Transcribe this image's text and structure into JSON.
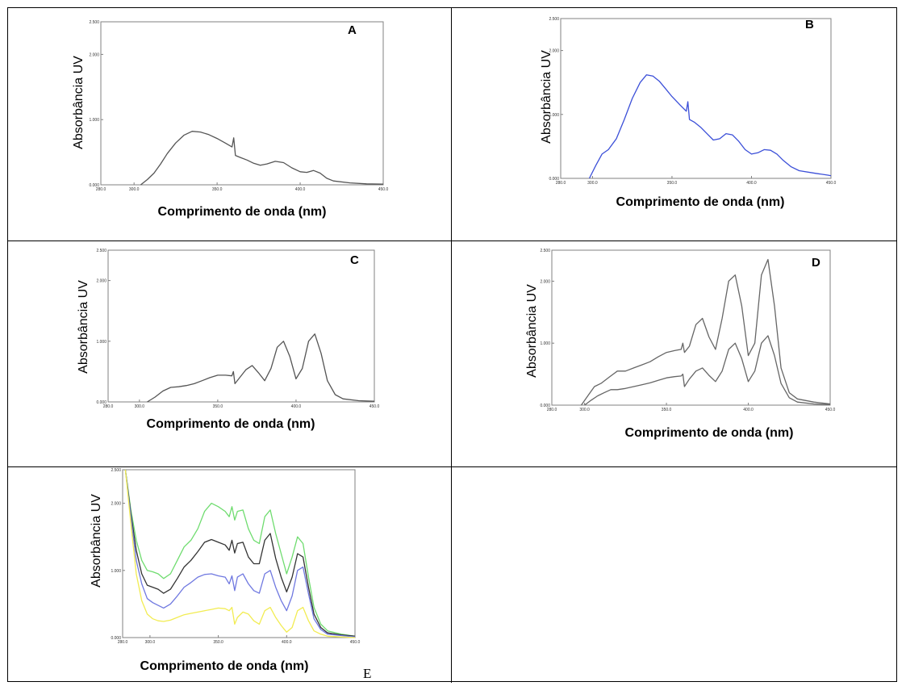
{
  "axis_text": {
    "ylabel": "Absorbância UV",
    "xlabel": "Comprimento de onda (nm)"
  },
  "chart_data": [
    {
      "type": "line",
      "panel": "A",
      "xlabel": "Comprimento de onda (nm)",
      "ylabel": "Absorbância UV",
      "xlim": [
        280,
        450
      ],
      "ylim": [
        0,
        2.5
      ],
      "xticks": [
        "280.0",
        "300.0",
        "350.0",
        "400.0",
        "450.0"
      ],
      "yticks": [
        "0.000",
        "1.000",
        "2.000",
        "2.500"
      ],
      "series": [
        {
          "color": "#555555",
          "x": [
            304,
            308,
            312,
            316,
            320,
            325,
            330,
            335,
            340,
            345,
            350,
            355,
            359,
            360,
            361,
            364,
            368,
            372,
            376,
            380,
            385,
            390,
            395,
            400,
            404,
            408,
            412,
            416,
            420,
            430,
            440,
            450
          ],
          "values": [
            0.0,
            0.08,
            0.18,
            0.32,
            0.48,
            0.64,
            0.76,
            0.82,
            0.81,
            0.77,
            0.71,
            0.64,
            0.58,
            0.72,
            0.45,
            0.42,
            0.38,
            0.33,
            0.3,
            0.32,
            0.36,
            0.34,
            0.26,
            0.2,
            0.19,
            0.22,
            0.18,
            0.1,
            0.06,
            0.03,
            0.015,
            0.01
          ]
        }
      ]
    },
    {
      "type": "line",
      "panel": "B",
      "xlabel": "Comprimento de onda (nm)",
      "ylabel": "Absorbância UV",
      "xlim": [
        280,
        450
      ],
      "ylim": [
        0,
        2.5
      ],
      "xticks": [
        "280.0",
        "300.0",
        "350.0",
        "400.0",
        "450.0"
      ],
      "yticks": [
        "0.000",
        "1.000",
        "2.000",
        "2.500"
      ],
      "series": [
        {
          "color": "#3b4fd8",
          "x": [
            298,
            302,
            306,
            310,
            315,
            320,
            325,
            330,
            334,
            338,
            342,
            346,
            350,
            355,
            359,
            360,
            361,
            364,
            368,
            372,
            376,
            380,
            384,
            388,
            392,
            396,
            400,
            404,
            408,
            412,
            416,
            420,
            425,
            430,
            440,
            448,
            450
          ],
          "values": [
            0.0,
            0.2,
            0.38,
            0.45,
            0.62,
            0.92,
            1.25,
            1.5,
            1.62,
            1.6,
            1.52,
            1.4,
            1.28,
            1.15,
            1.05,
            1.2,
            0.92,
            0.88,
            0.8,
            0.7,
            0.6,
            0.62,
            0.7,
            0.68,
            0.58,
            0.45,
            0.38,
            0.4,
            0.45,
            0.44,
            0.38,
            0.28,
            0.18,
            0.12,
            0.08,
            0.05,
            0.04
          ]
        }
      ]
    },
    {
      "type": "line",
      "panel": "C",
      "xlabel": "Comprimento de onda (nm)",
      "ylabel": "Absorbância UV",
      "xlim": [
        280,
        450
      ],
      "ylim": [
        0,
        2.5
      ],
      "xticks": [
        "280.0",
        "300.0",
        "350.0",
        "400.0",
        "450.0"
      ],
      "yticks": [
        "0.000",
        "1.000",
        "2.000",
        "2.500"
      ],
      "series": [
        {
          "color": "#555555",
          "x": [
            305,
            310,
            315,
            320,
            325,
            330,
            335,
            340,
            345,
            350,
            355,
            359,
            360,
            361,
            364,
            368,
            372,
            376,
            380,
            384,
            388,
            392,
            396,
            400,
            404,
            408,
            412,
            416,
            420,
            425,
            430,
            440,
            450
          ],
          "values": [
            0.0,
            0.08,
            0.18,
            0.24,
            0.25,
            0.27,
            0.3,
            0.35,
            0.4,
            0.44,
            0.44,
            0.43,
            0.5,
            0.3,
            0.4,
            0.53,
            0.6,
            0.48,
            0.35,
            0.55,
            0.9,
            1.0,
            0.75,
            0.38,
            0.55,
            1.0,
            1.12,
            0.8,
            0.35,
            0.12,
            0.05,
            0.02,
            0.01
          ]
        }
      ]
    },
    {
      "type": "line",
      "panel": "D",
      "xlabel": "Comprimento de onda (nm)",
      "ylabel": "Absorbância UV",
      "xlim": [
        280,
        450
      ],
      "ylim": [
        0,
        2.5
      ],
      "xticks": [
        "280.0",
        "300.0",
        "350.0",
        "400.0",
        "450.0"
      ],
      "yticks": [
        "0.000",
        "1.000",
        "2.000",
        "2.500"
      ],
      "series": [
        {
          "color": "#666666",
          "x": [
            298,
            302,
            306,
            310,
            315,
            320,
            325,
            330,
            335,
            340,
            345,
            350,
            355,
            359,
            360,
            361,
            364,
            368,
            372,
            376,
            380,
            384,
            388,
            392,
            396,
            400,
            404,
            408,
            412,
            416,
            420,
            425,
            430,
            440,
            450
          ],
          "values": [
            0.0,
            0.15,
            0.3,
            0.35,
            0.45,
            0.55,
            0.55,
            0.6,
            0.65,
            0.7,
            0.78,
            0.85,
            0.88,
            0.9,
            1.0,
            0.85,
            0.95,
            1.3,
            1.4,
            1.1,
            0.9,
            1.4,
            2.0,
            2.1,
            1.6,
            0.8,
            1.0,
            2.1,
            2.35,
            1.6,
            0.6,
            0.2,
            0.1,
            0.05,
            0.02
          ]
        },
        {
          "color": "#666666",
          "x": [
            300,
            304,
            308,
            312,
            316,
            320,
            325,
            330,
            335,
            340,
            345,
            350,
            355,
            359,
            360,
            361,
            364,
            368,
            372,
            376,
            380,
            384,
            388,
            392,
            396,
            400,
            404,
            408,
            412,
            416,
            420,
            425,
            430,
            440,
            450
          ],
          "values": [
            0.0,
            0.08,
            0.15,
            0.2,
            0.25,
            0.25,
            0.27,
            0.3,
            0.33,
            0.36,
            0.4,
            0.44,
            0.46,
            0.47,
            0.5,
            0.3,
            0.42,
            0.55,
            0.6,
            0.48,
            0.38,
            0.55,
            0.9,
            1.0,
            0.75,
            0.38,
            0.55,
            1.0,
            1.12,
            0.8,
            0.35,
            0.12,
            0.05,
            0.02,
            0.01
          ]
        }
      ]
    },
    {
      "type": "line",
      "panel": "E",
      "xlabel": "Comprimento de onda (nm)",
      "ylabel": "Absorbância UV",
      "xlim": [
        280,
        450
      ],
      "ylim": [
        0,
        2.5
      ],
      "xticks": [
        "280.0",
        "300.0",
        "350.0",
        "400.0",
        "450.0"
      ],
      "yticks": [
        "0.000",
        "1.000",
        "2.000",
        "2.500"
      ],
      "series": [
        {
          "color": "#6fdc6f",
          "x": [
            282,
            286,
            290,
            294,
            298,
            302,
            306,
            310,
            315,
            320,
            325,
            330,
            335,
            340,
            345,
            350,
            355,
            358,
            360,
            362,
            364,
            368,
            372,
            376,
            380,
            384,
            388,
            392,
            396,
            400,
            404,
            408,
            412,
            416,
            420,
            425,
            430,
            440,
            450
          ],
          "values": [
            2.5,
            1.9,
            1.45,
            1.15,
            1.0,
            0.98,
            0.95,
            0.88,
            0.95,
            1.15,
            1.35,
            1.45,
            1.62,
            1.88,
            2.0,
            1.95,
            1.88,
            1.8,
            1.95,
            1.75,
            1.88,
            1.9,
            1.62,
            1.45,
            1.4,
            1.8,
            1.9,
            1.55,
            1.25,
            0.95,
            1.2,
            1.5,
            1.4,
            0.9,
            0.45,
            0.2,
            0.1,
            0.05,
            0.02
          ]
        },
        {
          "color": "#333333",
          "x": [
            282,
            286,
            290,
            294,
            298,
            302,
            306,
            310,
            315,
            320,
            325,
            330,
            335,
            340,
            345,
            350,
            355,
            358,
            360,
            362,
            364,
            368,
            372,
            376,
            380,
            384,
            388,
            392,
            396,
            400,
            404,
            408,
            412,
            416,
            420,
            425,
            430,
            440,
            450
          ],
          "values": [
            2.5,
            1.85,
            1.3,
            0.95,
            0.78,
            0.75,
            0.72,
            0.66,
            0.72,
            0.88,
            1.05,
            1.15,
            1.28,
            1.42,
            1.46,
            1.42,
            1.38,
            1.3,
            1.45,
            1.26,
            1.4,
            1.42,
            1.2,
            1.1,
            1.1,
            1.45,
            1.55,
            1.18,
            0.9,
            0.68,
            0.9,
            1.25,
            1.2,
            0.75,
            0.35,
            0.15,
            0.07,
            0.04,
            0.02
          ]
        },
        {
          "color": "#6f78e0",
          "x": [
            282,
            286,
            290,
            294,
            298,
            302,
            306,
            310,
            315,
            320,
            325,
            330,
            335,
            340,
            345,
            350,
            355,
            358,
            360,
            362,
            364,
            368,
            372,
            376,
            380,
            384,
            388,
            392,
            396,
            400,
            404,
            408,
            412,
            416,
            420,
            425,
            430,
            440,
            450
          ],
          "values": [
            2.5,
            1.8,
            1.15,
            0.8,
            0.58,
            0.52,
            0.48,
            0.44,
            0.5,
            0.62,
            0.75,
            0.82,
            0.9,
            0.94,
            0.95,
            0.92,
            0.9,
            0.8,
            0.92,
            0.7,
            0.9,
            0.95,
            0.8,
            0.7,
            0.66,
            0.95,
            1.0,
            0.75,
            0.55,
            0.4,
            0.62,
            1.0,
            1.05,
            0.65,
            0.28,
            0.12,
            0.05,
            0.03,
            0.01
          ]
        },
        {
          "color": "#f2ec52",
          "x": [
            282,
            286,
            290,
            294,
            298,
            302,
            306,
            310,
            315,
            320,
            325,
            330,
            335,
            340,
            345,
            350,
            355,
            358,
            360,
            362,
            364,
            368,
            372,
            376,
            380,
            384,
            388,
            392,
            396,
            400,
            404,
            408,
            412,
            416,
            420,
            425,
            430,
            440,
            450
          ],
          "values": [
            2.5,
            1.7,
            0.95,
            0.55,
            0.35,
            0.28,
            0.25,
            0.24,
            0.26,
            0.3,
            0.34,
            0.36,
            0.38,
            0.4,
            0.42,
            0.44,
            0.43,
            0.4,
            0.45,
            0.2,
            0.3,
            0.38,
            0.35,
            0.25,
            0.2,
            0.4,
            0.45,
            0.3,
            0.18,
            0.08,
            0.15,
            0.4,
            0.45,
            0.25,
            0.1,
            0.05,
            0.02,
            0.01,
            0.0
          ]
        }
      ]
    }
  ]
}
